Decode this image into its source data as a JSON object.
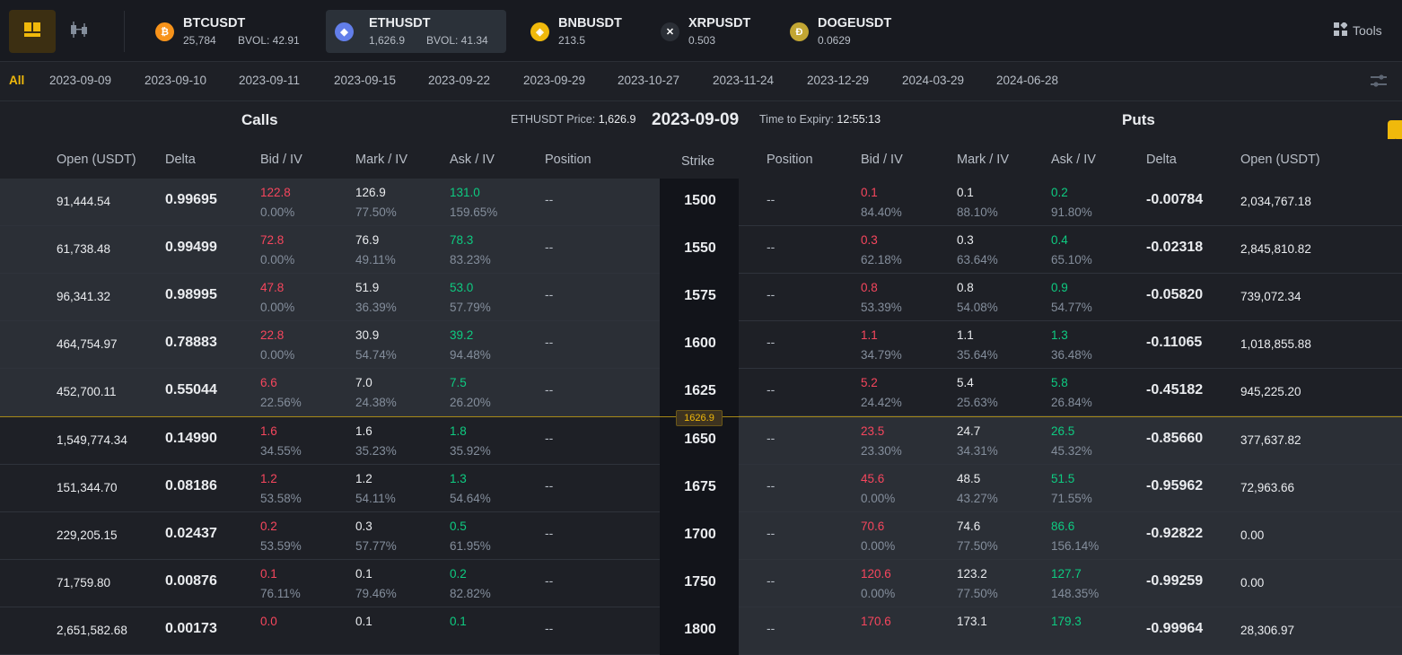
{
  "colors": {
    "accent": "#f0b90b",
    "bid": "#f6465d",
    "ask": "#0ecb81"
  },
  "view_buttons": [
    {
      "icon": "grid-view-icon"
    },
    {
      "icon": "candlestick-chart-icon"
    }
  ],
  "symbols": [
    {
      "name": "BTCUSDT",
      "price": "25,784",
      "bvol": "BVOL: 42.91",
      "icon": "bitcoin-coin-icon",
      "color": "#f7931a",
      "glyph": "₿"
    },
    {
      "name": "ETHUSDT",
      "price": "1,626.9",
      "bvol": "BVOL: 41.34",
      "icon": "ethereum-coin-icon",
      "color": "#627eea",
      "glyph": "◆"
    },
    {
      "name": "BNBUSDT",
      "price": "213.5",
      "bvol": "",
      "icon": "bnb-coin-icon",
      "color": "#f0b90b",
      "glyph": "◈"
    },
    {
      "name": "XRPUSDT",
      "price": "0.503",
      "bvol": "",
      "icon": "xrp-coin-icon",
      "color": "#2b2f36",
      "glyph": "✕"
    },
    {
      "name": "DOGEUSDT",
      "price": "0.0629",
      "bvol": "",
      "icon": "doge-coin-icon",
      "color": "#c2a633",
      "glyph": "Ð"
    }
  ],
  "tools_label": "Tools",
  "dates": [
    "All",
    "2023-09-09",
    "2023-09-10",
    "2023-09-11",
    "2023-09-15",
    "2023-09-22",
    "2023-09-29",
    "2023-10-27",
    "2023-11-24",
    "2023-12-29",
    "2024-03-29",
    "2024-06-28"
  ],
  "titles": {
    "calls": "Calls",
    "puts": "Puts",
    "price_label": "ETHUSDT Price:",
    "price_value": "1,626.9",
    "expiry": "2023-09-09",
    "tte_label": "Time to Expiry:",
    "tte_value": "12:55:13"
  },
  "headers": {
    "call": [
      "Open (USDT)",
      "Delta",
      "Bid / IV",
      "Mark / IV",
      "Ask / IV",
      "Position"
    ],
    "strike": "Strike",
    "put": [
      "Position",
      "Bid / IV",
      "Mark / IV",
      "Ask / IV",
      "Delta",
      "Open (USDT)"
    ]
  },
  "atm_price": "1626.9",
  "rows": [
    {
      "strike": "1500",
      "c_open": "91,444.54",
      "c_delta": "0.99695",
      "c_bid": "122.8",
      "c_bid_iv": "0.00%",
      "c_mark": "126.9",
      "c_mark_iv": "77.50%",
      "c_ask": "131.0",
      "c_ask_iv": "159.65%",
      "c_pos": "--",
      "p_pos": "--",
      "p_bid": "0.1",
      "p_bid_iv": "84.40%",
      "p_mark": "0.1",
      "p_mark_iv": "88.10%",
      "p_ask": "0.2",
      "p_ask_iv": "91.80%",
      "p_delta": "-0.00784",
      "p_open": "2,034,767.18"
    },
    {
      "strike": "1550",
      "c_open": "61,738.48",
      "c_delta": "0.99499",
      "c_bid": "72.8",
      "c_bid_iv": "0.00%",
      "c_mark": "76.9",
      "c_mark_iv": "49.11%",
      "c_ask": "78.3",
      "c_ask_iv": "83.23%",
      "c_pos": "--",
      "p_pos": "--",
      "p_bid": "0.3",
      "p_bid_iv": "62.18%",
      "p_mark": "0.3",
      "p_mark_iv": "63.64%",
      "p_ask": "0.4",
      "p_ask_iv": "65.10%",
      "p_delta": "-0.02318",
      "p_open": "2,845,810.82"
    },
    {
      "strike": "1575",
      "c_open": "96,341.32",
      "c_delta": "0.98995",
      "c_bid": "47.8",
      "c_bid_iv": "0.00%",
      "c_mark": "51.9",
      "c_mark_iv": "36.39%",
      "c_ask": "53.0",
      "c_ask_iv": "57.79%",
      "c_pos": "--",
      "p_pos": "--",
      "p_bid": "0.8",
      "p_bid_iv": "53.39%",
      "p_mark": "0.8",
      "p_mark_iv": "54.08%",
      "p_ask": "0.9",
      "p_ask_iv": "54.77%",
      "p_delta": "-0.05820",
      "p_open": "739,072.34"
    },
    {
      "strike": "1600",
      "c_open": "464,754.97",
      "c_delta": "0.78883",
      "c_bid": "22.8",
      "c_bid_iv": "0.00%",
      "c_mark": "30.9",
      "c_mark_iv": "54.74%",
      "c_ask": "39.2",
      "c_ask_iv": "94.48%",
      "c_pos": "--",
      "p_pos": "--",
      "p_bid": "1.1",
      "p_bid_iv": "34.79%",
      "p_mark": "1.1",
      "p_mark_iv": "35.64%",
      "p_ask": "1.3",
      "p_ask_iv": "36.48%",
      "p_delta": "-0.11065",
      "p_open": "1,018,855.88"
    },
    {
      "strike": "1625",
      "c_open": "452,700.11",
      "c_delta": "0.55044",
      "c_bid": "6.6",
      "c_bid_iv": "22.56%",
      "c_mark": "7.0",
      "c_mark_iv": "24.38%",
      "c_ask": "7.5",
      "c_ask_iv": "26.20%",
      "c_pos": "--",
      "p_pos": "--",
      "p_bid": "5.2",
      "p_bid_iv": "24.42%",
      "p_mark": "5.4",
      "p_mark_iv": "25.63%",
      "p_ask": "5.8",
      "p_ask_iv": "26.84%",
      "p_delta": "-0.45182",
      "p_open": "945,225.20"
    },
    {
      "strike": "1650",
      "c_open": "1,549,774.34",
      "c_delta": "0.14990",
      "c_bid": "1.6",
      "c_bid_iv": "34.55%",
      "c_mark": "1.6",
      "c_mark_iv": "35.23%",
      "c_ask": "1.8",
      "c_ask_iv": "35.92%",
      "c_pos": "--",
      "p_pos": "--",
      "p_bid": "23.5",
      "p_bid_iv": "23.30%",
      "p_mark": "24.7",
      "p_mark_iv": "34.31%",
      "p_ask": "26.5",
      "p_ask_iv": "45.32%",
      "p_delta": "-0.85660",
      "p_open": "377,637.82"
    },
    {
      "strike": "1675",
      "c_open": "151,344.70",
      "c_delta": "0.08186",
      "c_bid": "1.2",
      "c_bid_iv": "53.58%",
      "c_mark": "1.2",
      "c_mark_iv": "54.11%",
      "c_ask": "1.3",
      "c_ask_iv": "54.64%",
      "c_pos": "--",
      "p_pos": "--",
      "p_bid": "45.6",
      "p_bid_iv": "0.00%",
      "p_mark": "48.5",
      "p_mark_iv": "43.27%",
      "p_ask": "51.5",
      "p_ask_iv": "71.55%",
      "p_delta": "-0.95962",
      "p_open": "72,963.66"
    },
    {
      "strike": "1700",
      "c_open": "229,205.15",
      "c_delta": "0.02437",
      "c_bid": "0.2",
      "c_bid_iv": "53.59%",
      "c_mark": "0.3",
      "c_mark_iv": "57.77%",
      "c_ask": "0.5",
      "c_ask_iv": "61.95%",
      "c_pos": "--",
      "p_pos": "--",
      "p_bid": "70.6",
      "p_bid_iv": "0.00%",
      "p_mark": "74.6",
      "p_mark_iv": "77.50%",
      "p_ask": "86.6",
      "p_ask_iv": "156.14%",
      "p_delta": "-0.92822",
      "p_open": "0.00"
    },
    {
      "strike": "1750",
      "c_open": "71,759.80",
      "c_delta": "0.00876",
      "c_bid": "0.1",
      "c_bid_iv": "76.11%",
      "c_mark": "0.1",
      "c_mark_iv": "79.46%",
      "c_ask": "0.2",
      "c_ask_iv": "82.82%",
      "c_pos": "--",
      "p_pos": "--",
      "p_bid": "120.6",
      "p_bid_iv": "0.00%",
      "p_mark": "123.2",
      "p_mark_iv": "77.50%",
      "p_ask": "127.7",
      "p_ask_iv": "148.35%",
      "p_delta": "-0.99259",
      "p_open": "0.00"
    },
    {
      "strike": "1800",
      "c_open": "2,651,582.68",
      "c_delta": "0.00173",
      "c_bid": "0.0",
      "c_bid_iv": "",
      "c_mark": "0.1",
      "c_mark_iv": "",
      "c_ask": "0.1",
      "c_ask_iv": "",
      "c_pos": "--",
      "p_pos": "--",
      "p_bid": "170.6",
      "p_bid_iv": "",
      "p_mark": "173.1",
      "p_mark_iv": "",
      "p_ask": "179.3",
      "p_ask_iv": "",
      "p_delta": "-0.99964",
      "p_open": "28,306.97"
    }
  ]
}
